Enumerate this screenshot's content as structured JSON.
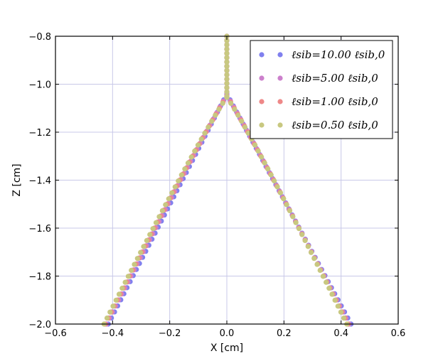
{
  "chart_data": {
    "type": "scatter",
    "xlabel": "X [cm]",
    "ylabel": "Z [cm]",
    "xlim": [
      -0.6,
      0.6
    ],
    "ylim": [
      -2.0,
      -0.8
    ],
    "xticks": [
      -0.6,
      -0.4,
      -0.2,
      0.0,
      0.2,
      0.4,
      0.6
    ],
    "yticks": [
      -2.0,
      -1.8,
      -1.6,
      -1.4,
      -1.2,
      -1.0,
      -0.8
    ],
    "xtick_labels": [
      "−0.6",
      "−0.4",
      "−0.2",
      "0.0",
      "0.2",
      "0.4",
      "0.6"
    ],
    "ytick_labels": [
      "−2.0",
      "−1.8",
      "−1.6",
      "−1.4",
      "−1.2",
      "−1.0",
      "−0.8"
    ],
    "grid": true,
    "legend_position": "top-right",
    "stem_x": 0.0,
    "stem_z_range": [
      -1.05,
      -0.8
    ],
    "series": [
      {
        "name": "ℓsib=10.00 ℓsib,0",
        "color": "#8080ee",
        "apex": [
          0.0,
          -1.04
        ],
        "left_end": [
          -0.415,
          -2.0
        ],
        "right_end": [
          0.435,
          -2.0
        ],
        "curvature": 0.55
      },
      {
        "name": "ℓsib=5.00 ℓsib,0",
        "color": "#cc80cc",
        "apex": [
          0.0,
          -1.045
        ],
        "left_end": [
          -0.422,
          -2.0
        ],
        "right_end": [
          0.428,
          -2.0
        ],
        "curvature": 0.52
      },
      {
        "name": "ℓsib=1.00 ℓsib,0",
        "color": "#ee8888",
        "apex": [
          0.0,
          -1.05
        ],
        "left_end": [
          -0.426,
          -2.0
        ],
        "right_end": [
          0.424,
          -2.0
        ],
        "curvature": 0.5
      },
      {
        "name": "ℓsib=0.50 ℓsib,0",
        "color": "#c8c880",
        "apex": [
          0.0,
          -1.055
        ],
        "left_end": [
          -0.43,
          -2.0
        ],
        "right_end": [
          0.42,
          -2.0
        ],
        "curvature": 0.48
      }
    ]
  }
}
